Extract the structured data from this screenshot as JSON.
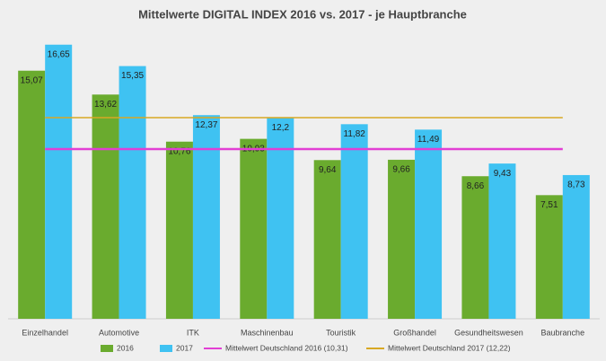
{
  "chart_data": {
    "type": "bar",
    "title": "Mittelwerte DIGITAL INDEX 2016 vs. 2017 -  je Hauptbranche",
    "categories": [
      "Einzelhandel",
      "Automotive",
      "ITK",
      "Maschinenbau",
      "Touristik",
      "Großhandel",
      "Gesundheitswesen",
      "Baubranche"
    ],
    "series": [
      {
        "name": "2016",
        "color": "#6aab2e",
        "values": [
          15.07,
          13.62,
          10.76,
          10.93,
          9.64,
          9.66,
          8.66,
          7.51
        ],
        "value_labels": [
          "15,07",
          "13,62",
          "10,76",
          "10,93",
          "9,64",
          "9,66",
          "8,66",
          "7,51"
        ]
      },
      {
        "name": "2017",
        "color": "#3fc2f2",
        "values": [
          16.65,
          15.35,
          12.37,
          12.2,
          11.82,
          11.49,
          9.43,
          8.73
        ],
        "value_labels": [
          "16,65",
          "15,35",
          "12,37",
          "12,2",
          "11,82",
          "11,49",
          "9,43",
          "8,73"
        ]
      }
    ],
    "reference_lines": [
      {
        "name": "Mittelwert Deutschland 2016 (10,31)",
        "value": 10.31,
        "color": "#e23fd4"
      },
      {
        "name": "Mittelwert Deutschland 2017 (12,22)",
        "value": 12.22,
        "color": "#d8a823"
      }
    ],
    "ylim": [
      0,
      18
    ]
  }
}
